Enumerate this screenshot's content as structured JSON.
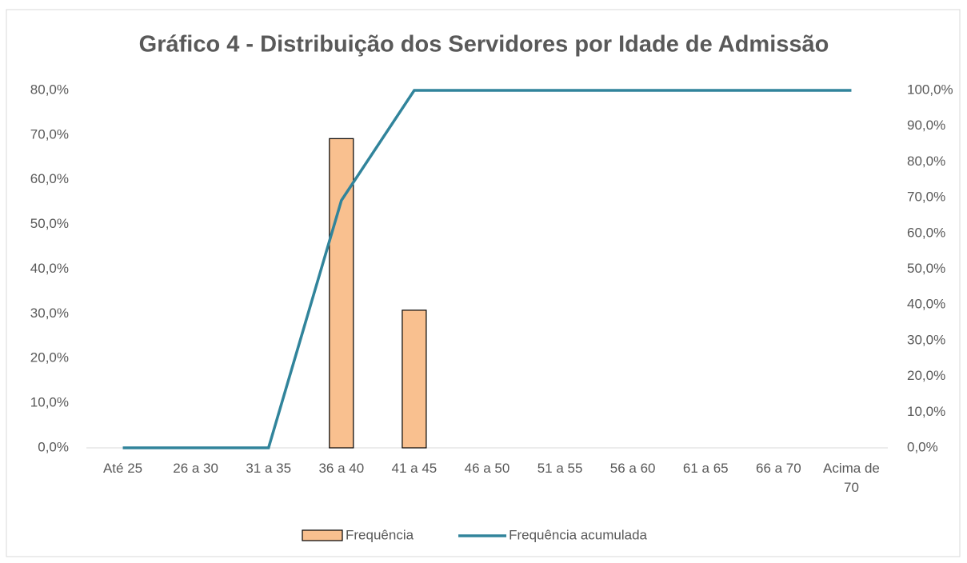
{
  "chart_data": {
    "type": "bar_line",
    "title": "Gráfico 4 - Distribuição dos Servidores por Idade de Admissão",
    "categories": [
      "Até 25",
      "26 a 30",
      "31 a 35",
      "36 a 40",
      "41 a 45",
      "46 a 50",
      "51 a 55",
      "56 a 60",
      "61 a 65",
      "66 a 70",
      "Acima de 70"
    ],
    "series": [
      {
        "name": "Frequência",
        "type": "bar",
        "color": "#f9c08f",
        "values": [
          0,
          0,
          0,
          69.2,
          30.8,
          0,
          0,
          0,
          0,
          0,
          0
        ]
      },
      {
        "name": "Frequência acumulada",
        "type": "line",
        "axis": "y2",
        "color": "#31849b",
        "values": [
          0,
          0,
          0,
          69.2,
          100,
          100,
          100,
          100,
          100,
          100,
          100
        ]
      }
    ],
    "ylim": [
      0,
      80
    ],
    "yticks": [
      {
        "value": 0,
        "label": "0,0%"
      },
      {
        "value": 10,
        "label": "10,0%"
      },
      {
        "value": 20,
        "label": "20,0%"
      },
      {
        "value": 30,
        "label": "30,0%"
      },
      {
        "value": 40,
        "label": "40,0%"
      },
      {
        "value": 50,
        "label": "50,0%"
      },
      {
        "value": 60,
        "label": "60,0%"
      },
      {
        "value": 70,
        "label": "70,0%"
      },
      {
        "value": 80,
        "label": "80,0%"
      }
    ],
    "y2lim": [
      0,
      100
    ],
    "y2ticks": [
      {
        "value": 0,
        "label": "0,0%"
      },
      {
        "value": 10,
        "label": "10,0%"
      },
      {
        "value": 20,
        "label": "20,0%"
      },
      {
        "value": 30,
        "label": "30,0%"
      },
      {
        "value": 40,
        "label": "40,0%"
      },
      {
        "value": 50,
        "label": "50,0%"
      },
      {
        "value": 60,
        "label": "60,0%"
      },
      {
        "value": 70,
        "label": "70,0%"
      },
      {
        "value": 80,
        "label": "80,0%"
      },
      {
        "value": 90,
        "label": "90,0%"
      },
      {
        "value": 100,
        "label": "100,0%"
      }
    ],
    "grid": false,
    "legend": "bottom"
  }
}
